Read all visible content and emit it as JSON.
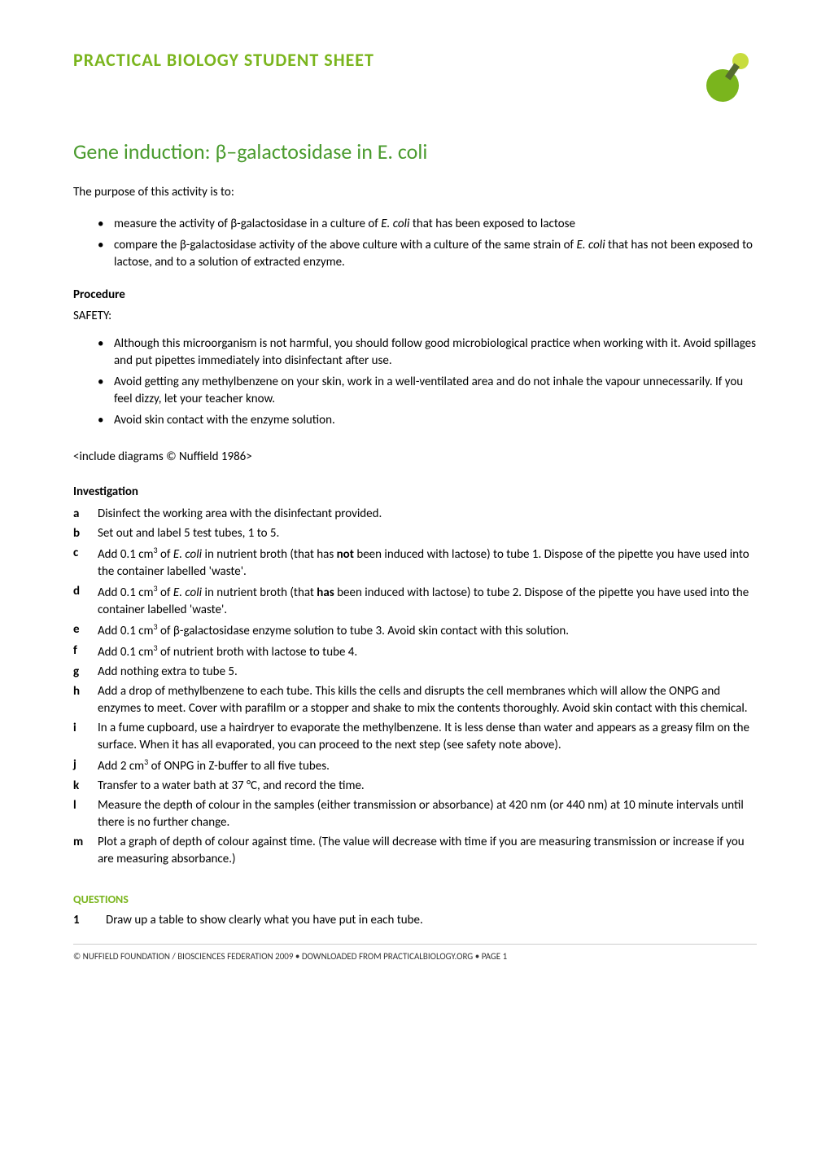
{
  "header": {
    "title": "PRACTICAL BIOLOGY STUDENT SHEET",
    "logo_colors": {
      "top_circle": "#c7dc3e",
      "bottom_circle": "#7ab51d",
      "connector": "#556b2f"
    }
  },
  "main_title": "Gene induction: β–galactosidase in E. coli",
  "intro": "The purpose of this activity is to:",
  "purpose_bullets": [
    "measure the activity of β-galactosidase in a culture of <i>E. coli</i> that has been exposed to lactose",
    "compare the β-galactosidase activity of the above culture with a culture of the same strain of <i>E. coli</i> that has not been exposed to lactose, and to a solution of extracted enzyme."
  ],
  "procedure": {
    "heading": "Procedure",
    "safety_label": "SAFETY:",
    "safety_bullets": [
      "Although this microorganism is not harmful, you should follow good microbiological practice when working with it. Avoid spillages and put pipettes immediately into disinfectant after use.",
      "Avoid getting any methylbenzene on your skin, work in a well-ventilated area and do not inhale the vapour unnecessarily. If you feel dizzy, let your teacher know.",
      "Avoid skin contact with the enzyme solution."
    ]
  },
  "include_note": "<include diagrams © Nuffield 1986>",
  "investigation": {
    "heading": "Investigation",
    "steps": [
      {
        "letter": "a",
        "text": "Disinfect the working area with the disinfectant provided."
      },
      {
        "letter": "b",
        "text": "Set out and label 5 test tubes, 1 to 5."
      },
      {
        "letter": "c",
        "text": "Add 0.1 cm<sup>3</sup> of <i>E. coli</i> in nutrient broth (that has <b>not</b> been induced with lactose) to tube 1. Dispose of the pipette you have used into the container labelled 'waste'."
      },
      {
        "letter": "d",
        "text": "Add 0.1 cm<sup>3</sup> of <i>E. coli</i> in nutrient broth (that <b>has</b> been induced with lactose) to tube 2. Dispose of the pipette you have used into the container labelled 'waste'."
      },
      {
        "letter": "e",
        "text": "Add 0.1 cm<sup>3</sup> of β-galactosidase enzyme solution to tube 3. Avoid skin contact with this solution."
      },
      {
        "letter": "f",
        "text": "Add 0.1 cm<sup>3</sup> of nutrient broth with lactose to tube 4."
      },
      {
        "letter": "g",
        "text": "Add nothing extra to tube 5."
      },
      {
        "letter": "h",
        "text": "Add a drop of methylbenzene to each tube. This kills the cells and disrupts the cell membranes which will allow the ONPG and enzymes to meet. Cover with parafilm or a stopper and shake to mix the contents thoroughly. Avoid skin contact with this chemical."
      },
      {
        "letter": "i",
        "text": "In a fume cupboard, use a hairdryer to evaporate the methylbenzene. It is less dense than water and appears as a greasy film on the surface. When it has all evaporated, you can proceed to the next step (see safety note above)."
      },
      {
        "letter": "j",
        "text": "Add 2 cm<sup>3</sup> of ONPG in Z-buffer to all five tubes."
      },
      {
        "letter": "k",
        "text": "Transfer to a water bath at 37 °C, and record the time."
      },
      {
        "letter": "l",
        "text": "Measure the depth of colour in the samples (either transmission or absorbance) at 420 nm (or 440 nm) at 10 minute intervals until there is no further change."
      },
      {
        "letter": "m",
        "text": "Plot a graph of depth of colour against time. (The value will decrease with time if you are measuring transmission or increase if you are measuring absorbance.)"
      }
    ]
  },
  "questions": {
    "heading": "QUESTIONS",
    "items": [
      {
        "num": "1",
        "text": "Draw up a table to show clearly what you have put in each tube."
      }
    ]
  },
  "footer": {
    "text": "© NUFFIELD FOUNDATION / BIOSCIENCES FEDERATION 2009    •    DOWNLOADED FROM  PRACTICALBIOLOGY.ORG  • PAGE 1"
  },
  "colors": {
    "green_title": "#7ab51d",
    "green_heading": "#4a9b2e",
    "text": "#000000",
    "background": "#ffffff"
  }
}
